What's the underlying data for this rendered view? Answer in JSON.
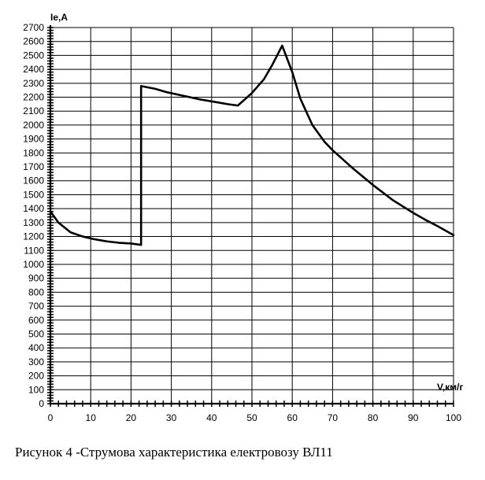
{
  "caption": "Рисунок 4 -Струмова характеристика електровозу ВЛ11",
  "chart_data": {
    "type": "line",
    "xlabel": "V,км/г",
    "ylabel": "Ie,A",
    "xlim": [
      0,
      100
    ],
    "ylim": [
      0,
      2700
    ],
    "x_ticks": [
      0,
      10,
      20,
      30,
      40,
      50,
      60,
      70,
      80,
      90,
      100
    ],
    "y_ticks": [
      0,
      100,
      200,
      300,
      400,
      500,
      600,
      700,
      800,
      900,
      1000,
      1100,
      1200,
      1300,
      1400,
      1500,
      1600,
      1700,
      1800,
      1900,
      2000,
      2100,
      2200,
      2300,
      2400,
      2500,
      2600,
      2700
    ],
    "grid": true,
    "line_color": "#000000",
    "series": [
      {
        "x": [
          0,
          2,
          5,
          8,
          11,
          14,
          17,
          20,
          22.5,
          22.5,
          26,
          29,
          33,
          37,
          41,
          44,
          46.5,
          50,
          53,
          55,
          57.5,
          60,
          62,
          65,
          68,
          70,
          75,
          80,
          85,
          90,
          93,
          96,
          100
        ],
        "y": [
          1380,
          1300,
          1230,
          1200,
          1180,
          1165,
          1155,
          1150,
          1140,
          2280,
          2260,
          2235,
          2210,
          2185,
          2165,
          2150,
          2140,
          2230,
          2330,
          2430,
          2570,
          2380,
          2190,
          2000,
          1880,
          1820,
          1690,
          1570,
          1460,
          1370,
          1320,
          1275,
          1210
        ]
      }
    ]
  }
}
